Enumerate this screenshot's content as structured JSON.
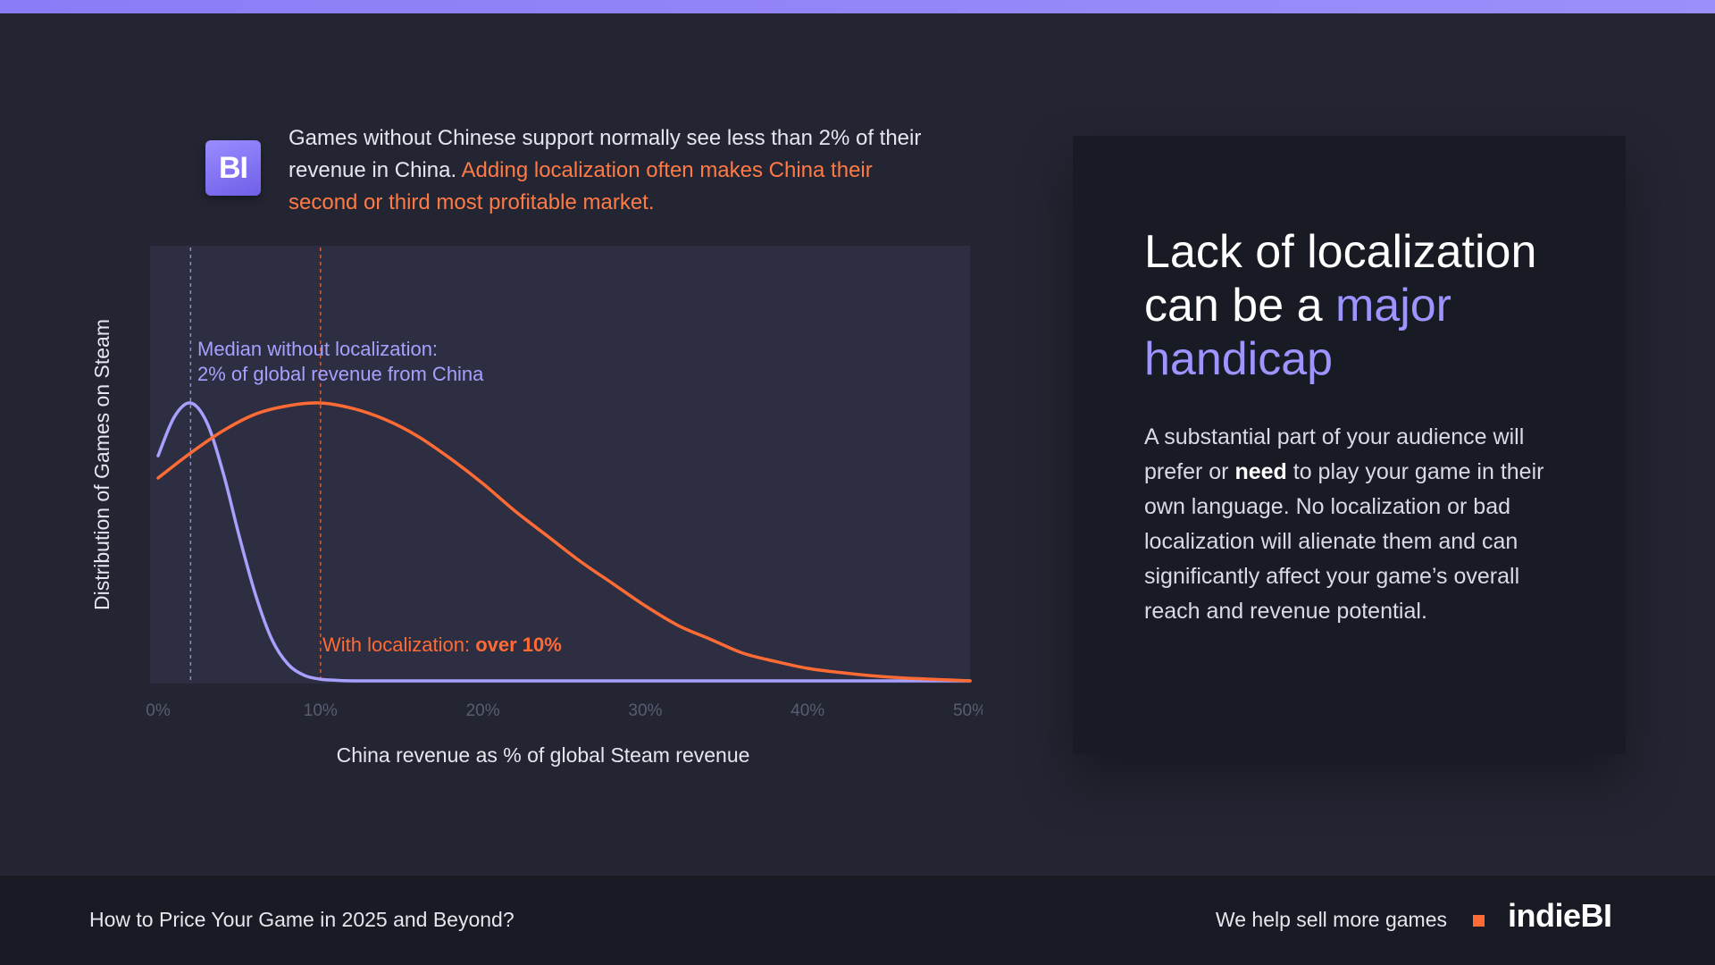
{
  "header": {
    "logo_text": "BI",
    "intro_plain": "Games without Chinese support normally see less than 2% of their revenue in China.",
    "intro_highlight": "Adding localization often makes China their second or third most profitable market."
  },
  "panel": {
    "title_line1": "Lack of localization",
    "title_line2_plain": "can be a",
    "title_line2_accent": "major",
    "title_line3_accent": "handicap",
    "body_part1": "A substantial part of your audience will prefer or",
    "body_bold": "need",
    "body_part2": "to play your game in their own language. No localization or bad localization will alienate them and can significantly affect your game’s overall reach and revenue potential."
  },
  "footer": {
    "left_text": "How to Price Your Game in 2025 and Beyond?",
    "tagline": "We help sell more games",
    "brand": "indieBI"
  },
  "colors": {
    "accent_purple": "#9d94ff",
    "accent_orange": "#ff6b35",
    "background": "#232532",
    "plot_background": "#2d2e41"
  },
  "chart_data": {
    "type": "line",
    "xlabel": "China revenue as % of global Steam revenue",
    "ylabel": "Distribution of Games on Steam",
    "xlim": [
      0,
      50
    ],
    "ylim": [
      0,
      1
    ],
    "xticks": [
      "0%",
      "10%",
      "20%",
      "30%",
      "40%",
      "50%"
    ],
    "grid": false,
    "y_ticks_shown": false,
    "series": [
      {
        "color": "#a8a0ff",
        "x": [
          0,
          1,
          2,
          3,
          4,
          5,
          6,
          7,
          8,
          9,
          10,
          11,
          12,
          14,
          16,
          20,
          30,
          40,
          50
        ],
        "y": [
          0.81,
          0.95,
          1.0,
          0.93,
          0.75,
          0.52,
          0.31,
          0.15,
          0.06,
          0.02,
          0.006,
          0.002,
          0.0,
          0.0,
          0.0,
          0.0,
          0.0,
          0.0,
          0.0
        ]
      },
      {
        "color": "#ff6b35",
        "x": [
          0,
          2,
          4,
          6,
          8,
          10,
          12,
          14,
          16,
          18,
          20,
          22,
          24,
          26,
          28,
          30,
          32,
          34,
          36,
          38,
          40,
          42,
          44,
          46,
          48,
          50
        ],
        "y": [
          0.73,
          0.82,
          0.9,
          0.96,
          0.99,
          1.0,
          0.98,
          0.94,
          0.88,
          0.8,
          0.71,
          0.61,
          0.52,
          0.43,
          0.35,
          0.27,
          0.2,
          0.15,
          0.1,
          0.07,
          0.045,
          0.03,
          0.018,
          0.01,
          0.005,
          0.0
        ]
      }
    ],
    "annotations": [
      {
        "x": 2,
        "color": "#a8a0ff",
        "line1": "Median without localization:",
        "line2": "2% of global revenue from China"
      },
      {
        "x": 10,
        "color": "#ff6b35",
        "plain": "With localization:",
        "bold": "over 10%"
      }
    ]
  }
}
